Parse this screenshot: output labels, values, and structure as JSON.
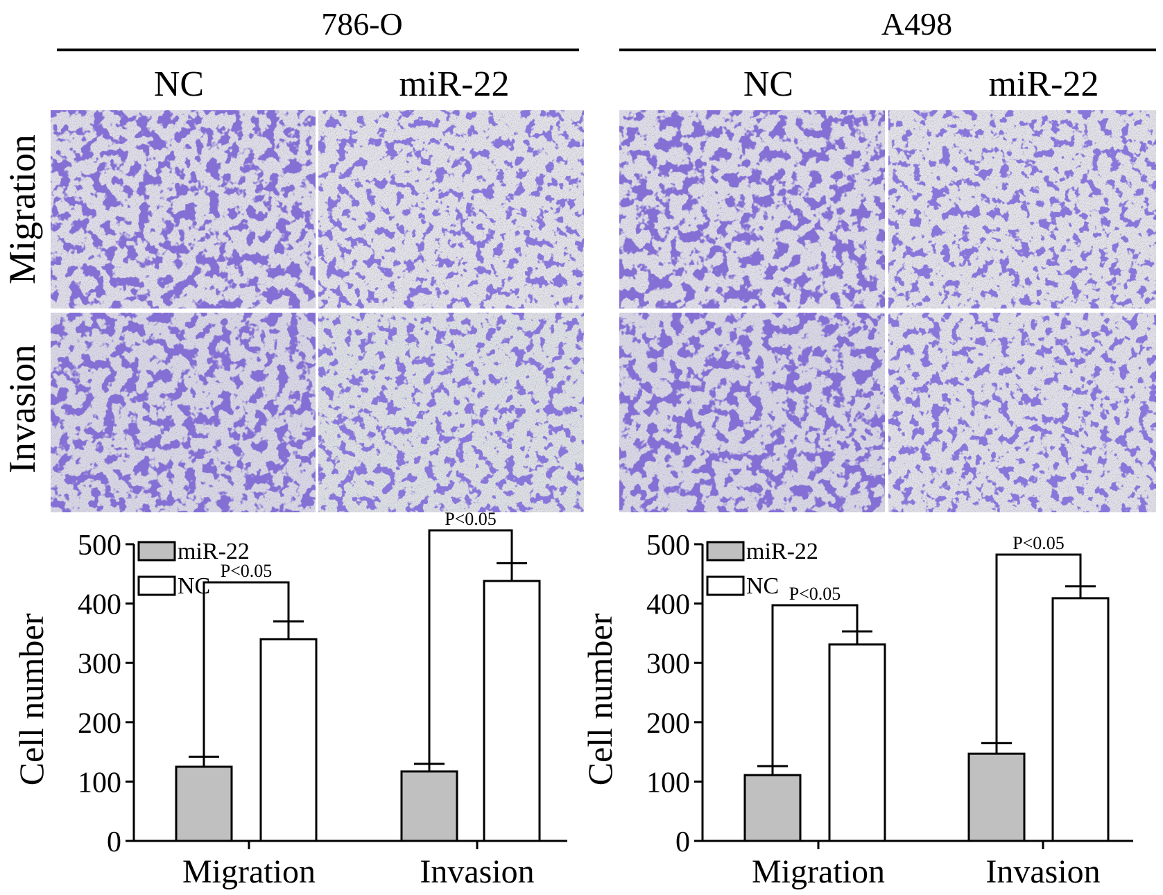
{
  "panels": [
    {
      "cell_line": "786-O",
      "columns": [
        "NC",
        "miR-22"
      ],
      "rows": [
        "Migration",
        "Invasion"
      ]
    },
    {
      "cell_line": "A498",
      "columns": [
        "NC",
        "miR-22"
      ],
      "rows": [
        "Migration",
        "Invasion"
      ]
    }
  ],
  "colors": {
    "stain_dark": "#3a2aa8",
    "stain_mid": "#5b4cc4",
    "background_light": "#e4e2ea",
    "bar_mir22": "#c0c0c0",
    "bar_nc": "#ffffff"
  },
  "chart_data": [
    {
      "type": "bar",
      "categories": [
        "Migration",
        "Invasion"
      ],
      "series": [
        {
          "name": "miR-22",
          "values": [
            125,
            117
          ],
          "errors": [
            17,
            13
          ]
        },
        {
          "name": "NC",
          "values": [
            340,
            438
          ],
          "errors": [
            30,
            30
          ]
        }
      ],
      "xlabel": "",
      "ylabel": "Cell number",
      "ylim": [
        0,
        500
      ],
      "yticks": [
        0,
        100,
        200,
        300,
        400,
        500
      ],
      "annotations": [
        "P<0.05",
        "P<0.05"
      ],
      "legend": "top-left",
      "grid": false
    },
    {
      "type": "bar",
      "categories": [
        "Migration",
        "Invasion"
      ],
      "series": [
        {
          "name": "miR-22",
          "values": [
            111,
            147
          ],
          "errors": [
            15,
            18
          ]
        },
        {
          "name": "NC",
          "values": [
            331,
            409
          ],
          "errors": [
            22,
            20
          ]
        }
      ],
      "xlabel": "",
      "ylabel": "Cell number",
      "ylim": [
        0,
        500
      ],
      "yticks": [
        0,
        100,
        200,
        300,
        400,
        500
      ],
      "annotations": [
        "P<0.05",
        "P<0.05"
      ],
      "legend": "top-left",
      "grid": false
    }
  ]
}
